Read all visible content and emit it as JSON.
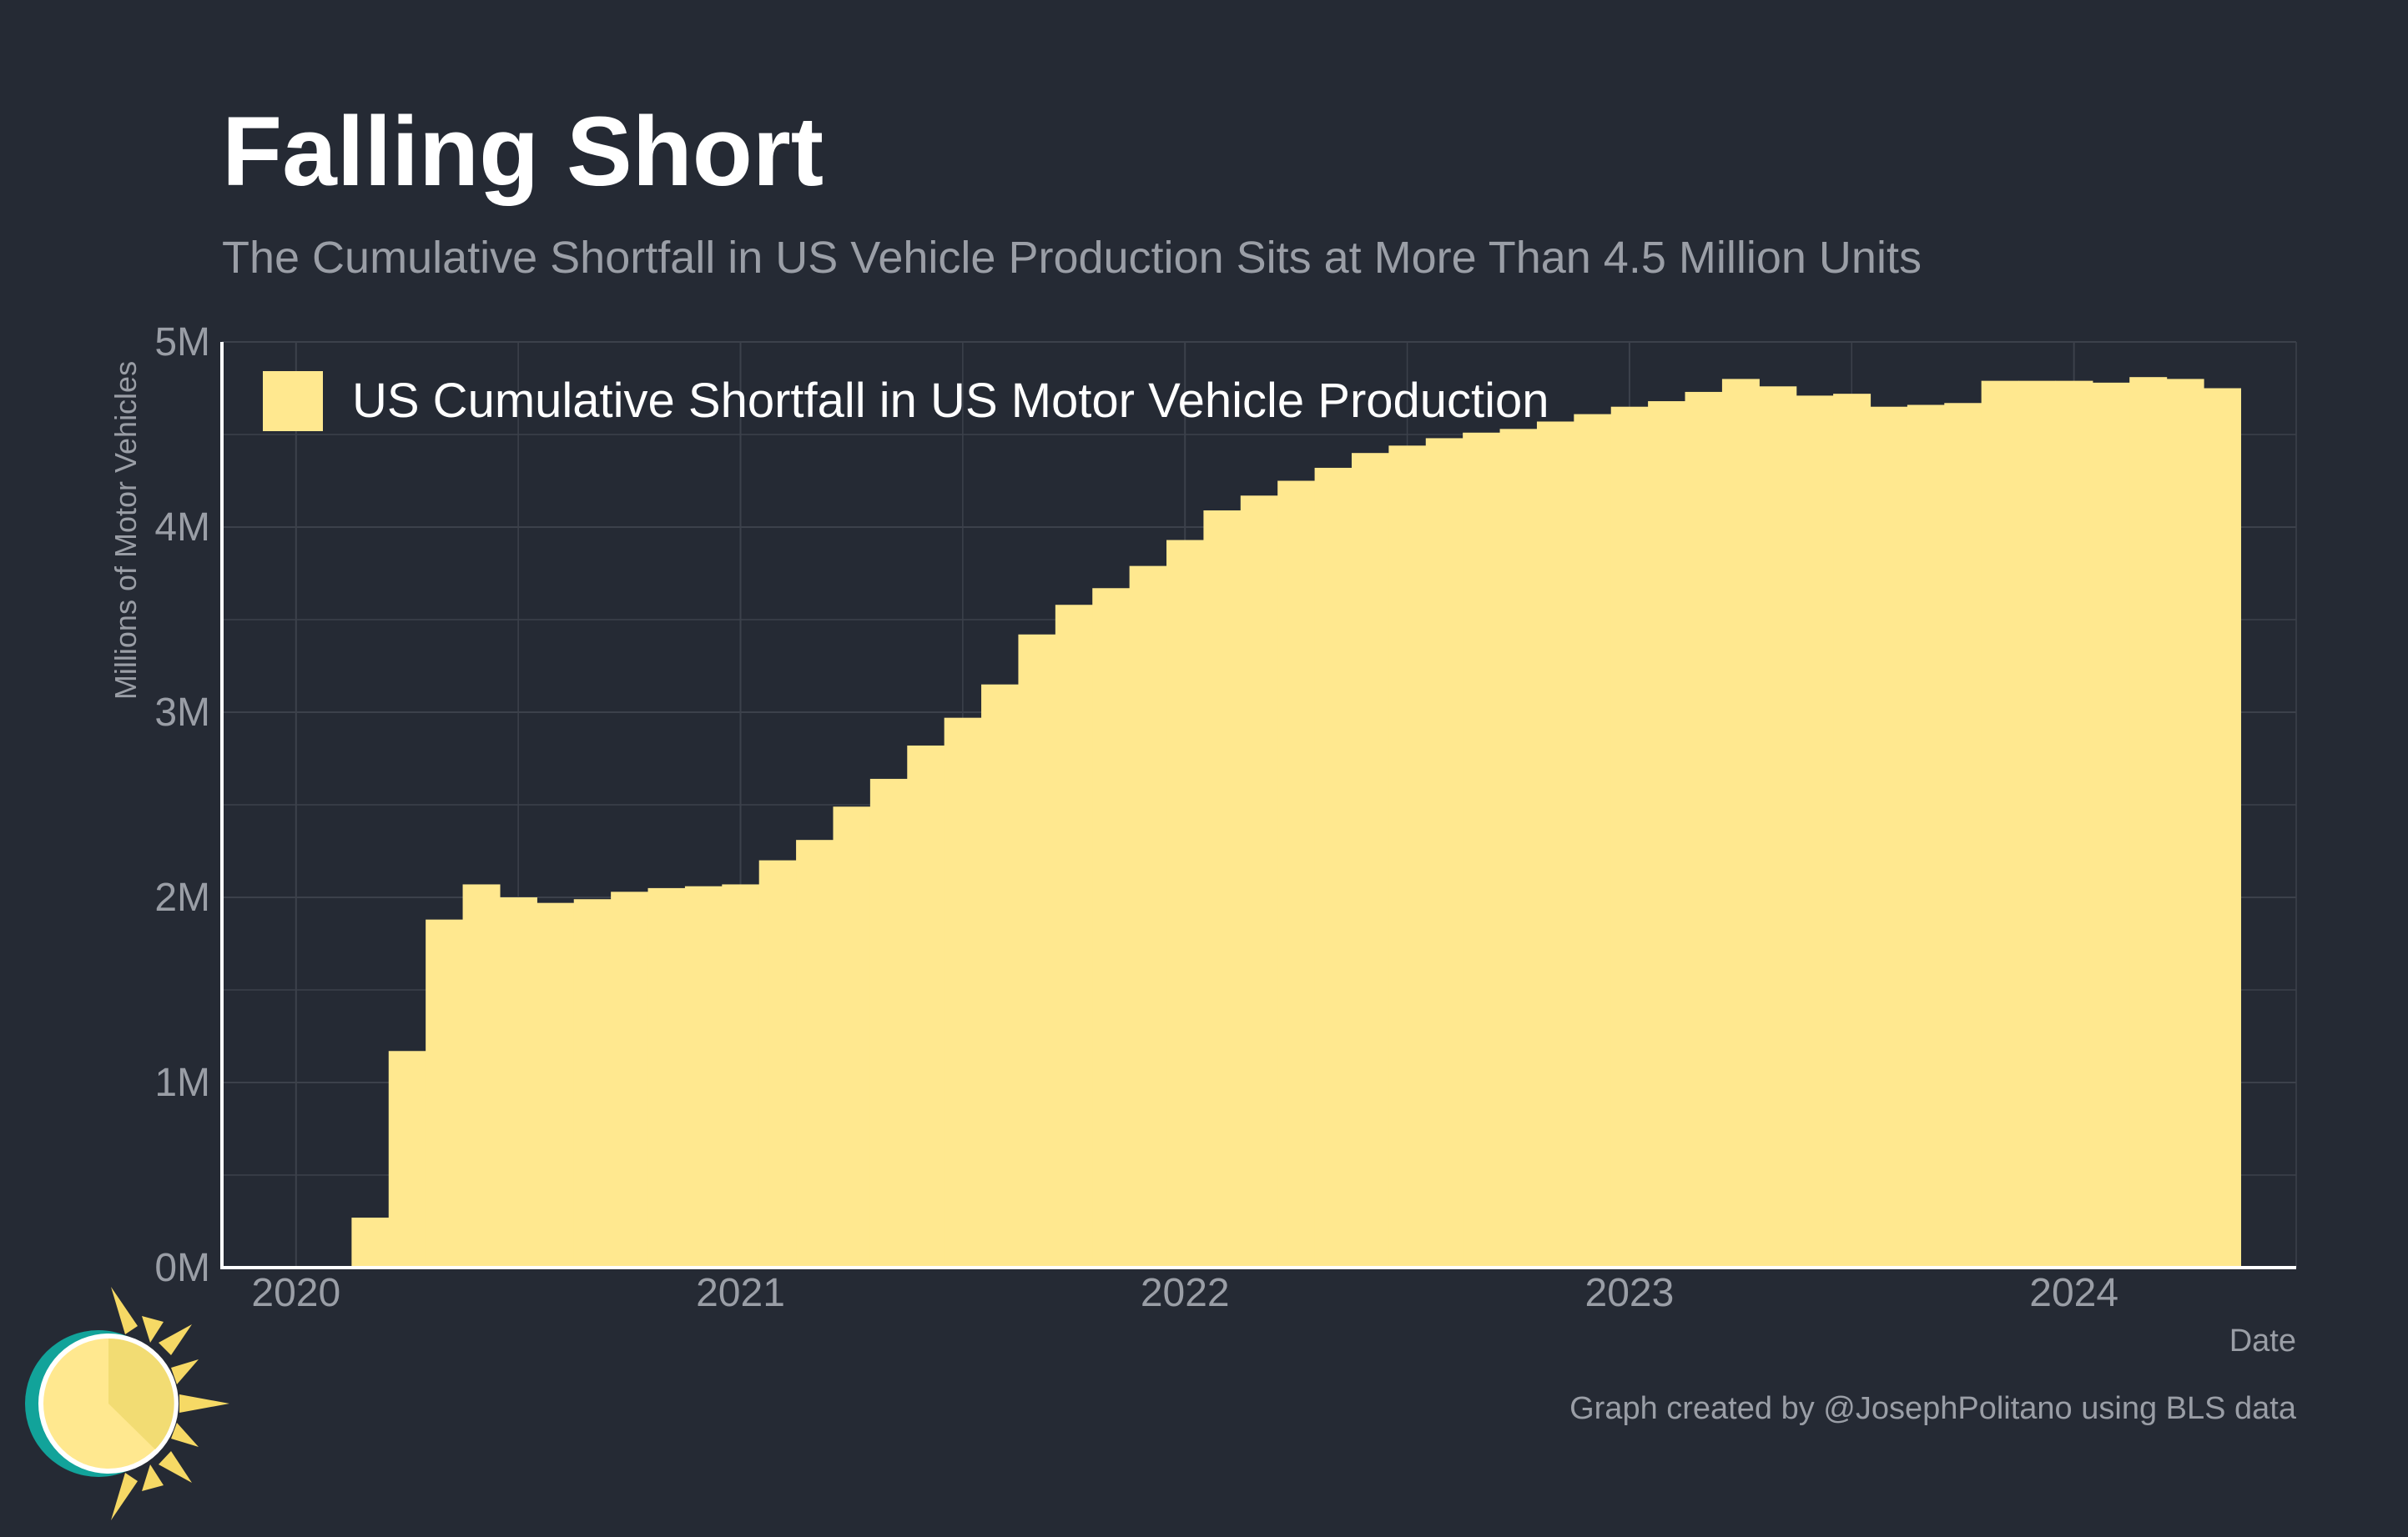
{
  "title": "Falling Short",
  "subtitle": "The Cumulative Shortfall in US Vehicle Production Sits at More Than 4.5 Million Units",
  "credit": "Graph created by @JosephPolitano using BLS data",
  "colors": {
    "background": "#252a34",
    "bar": "#ffe88f",
    "grid": "#3c414b",
    "axis_text": "#9a9ea6",
    "title": "#ffffff",
    "logo_ring": "#12a39a",
    "logo_sun": "#f6d965"
  },
  "logo_icon": "sun-logo-icon",
  "chart_data": {
    "type": "bar",
    "xlabel": "Date",
    "ylabel": "Millions of Motor Vehicles",
    "x_ticks": [
      "2020",
      "2021",
      "2022",
      "2023",
      "2024"
    ],
    "y_ticks": [
      "0M",
      "1M",
      "2M",
      "3M",
      "4M",
      "5M"
    ],
    "ylim": [
      0,
      5
    ],
    "xlim": [
      "2019-11",
      "2024-07"
    ],
    "grid": true,
    "legend_position": "top-left",
    "series": [
      {
        "name": "US Cumulative Shortfall in US Motor Vehicle Production",
        "start": "2020-01",
        "frequency": "monthly",
        "unit": "millions",
        "values": [
          0.0,
          0.0,
          0.27,
          1.17,
          1.88,
          2.07,
          2.0,
          1.97,
          1.99,
          2.03,
          2.05,
          2.06,
          2.07,
          2.2,
          2.31,
          2.49,
          2.64,
          2.82,
          2.97,
          3.15,
          3.42,
          3.58,
          3.67,
          3.79,
          3.93,
          4.09,
          4.17,
          4.25,
          4.32,
          4.4,
          4.44,
          4.48,
          4.51,
          4.53,
          4.57,
          4.61,
          4.65,
          4.68,
          4.73,
          4.8,
          4.76,
          4.71,
          4.72,
          4.65,
          4.66,
          4.67,
          4.79,
          4.79,
          4.79,
          4.78,
          4.81,
          4.8,
          4.75
        ]
      }
    ]
  }
}
